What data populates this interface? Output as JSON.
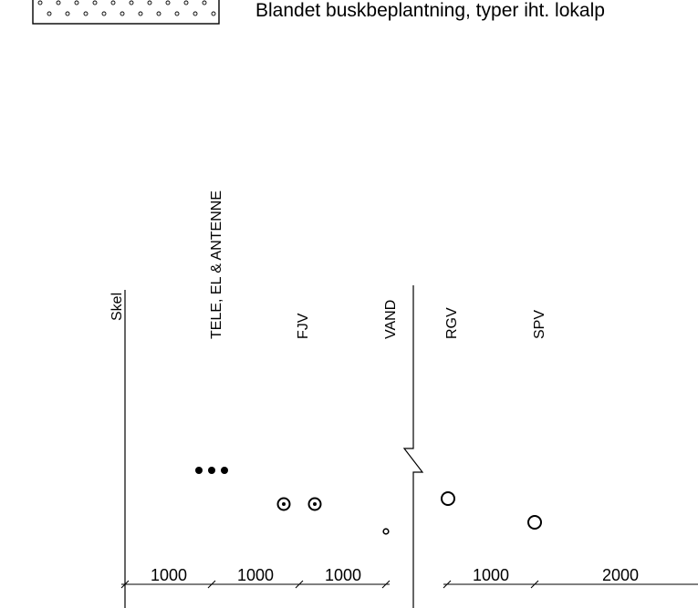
{
  "legend": {
    "description": "Blandet buskbeplantning, typer iht. lokalp"
  },
  "section": {
    "labels": {
      "skel": "Skel",
      "tele": "TELE, EL & ANTENNE",
      "fjv": "FJV",
      "vand": "VAND",
      "rgv": "RGV",
      "spv": "SPV"
    },
    "dimensions": [
      "1000",
      "1000",
      "1000",
      "1000",
      "2000"
    ]
  }
}
